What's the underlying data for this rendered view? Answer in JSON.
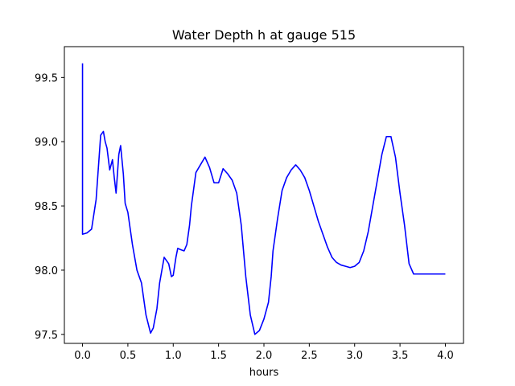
{
  "chart_data": {
    "type": "line",
    "title": "Water Depth h at gauge 515",
    "xlabel": "hours",
    "ylabel": "",
    "xlim": [
      -0.2,
      4.2
    ],
    "ylim": [
      97.43,
      99.74
    ],
    "x_ticks": [
      0.0,
      0.5,
      1.0,
      1.5,
      2.0,
      2.5,
      3.0,
      3.5,
      4.0
    ],
    "x_tick_labels": [
      "0.0",
      "0.5",
      "1.0",
      "1.5",
      "2.0",
      "2.5",
      "3.0",
      "3.5",
      "4.0"
    ],
    "y_ticks": [
      97.5,
      98.0,
      98.5,
      99.0,
      99.5
    ],
    "y_tick_labels": [
      "97.5",
      "98.0",
      "98.5",
      "99.0",
      "99.5"
    ],
    "grid": false,
    "legend": "none",
    "series": [
      {
        "color": "#0000ff",
        "x": [
          0.0,
          0.0,
          0.0,
          0.05,
          0.1,
          0.15,
          0.18,
          0.2,
          0.23,
          0.25,
          0.27,
          0.3,
          0.33,
          0.35,
          0.37,
          0.4,
          0.42,
          0.45,
          0.47,
          0.5,
          0.55,
          0.6,
          0.65,
          0.7,
          0.75,
          0.78,
          0.82,
          0.85,
          0.9,
          0.95,
          0.98,
          1.0,
          1.03,
          1.05,
          1.08,
          1.12,
          1.15,
          1.18,
          1.2,
          1.25,
          1.3,
          1.35,
          1.4,
          1.45,
          1.5,
          1.55,
          1.6,
          1.65,
          1.7,
          1.75,
          1.8,
          1.85,
          1.9,
          1.95,
          2.0,
          2.05,
          2.08,
          2.1,
          2.15,
          2.2,
          2.25,
          2.3,
          2.35,
          2.4,
          2.45,
          2.5,
          2.55,
          2.6,
          2.65,
          2.7,
          2.75,
          2.8,
          2.85,
          2.9,
          2.95,
          3.0,
          3.05,
          3.1,
          3.15,
          3.2,
          3.25,
          3.3,
          3.35,
          3.4,
          3.45,
          3.5,
          3.55,
          3.6,
          3.65,
          3.7,
          3.75,
          3.8,
          3.85,
          3.9,
          3.95,
          4.0
        ],
        "y": [
          99.61,
          98.28,
          98.28,
          98.29,
          98.32,
          98.55,
          98.85,
          99.05,
          99.08,
          99.0,
          98.95,
          98.78,
          98.86,
          98.72,
          98.6,
          98.9,
          98.97,
          98.75,
          98.52,
          98.45,
          98.2,
          98.0,
          97.9,
          97.65,
          97.51,
          97.55,
          97.7,
          97.9,
          98.1,
          98.05,
          97.95,
          97.96,
          98.1,
          98.17,
          98.16,
          98.15,
          98.2,
          98.35,
          98.5,
          98.76,
          98.82,
          98.88,
          98.8,
          98.68,
          98.68,
          98.79,
          98.75,
          98.7,
          98.6,
          98.35,
          97.95,
          97.65,
          97.5,
          97.53,
          97.62,
          97.75,
          97.95,
          98.15,
          98.4,
          98.62,
          98.72,
          98.78,
          98.82,
          98.78,
          98.72,
          98.62,
          98.5,
          98.38,
          98.28,
          98.18,
          98.1,
          98.06,
          98.04,
          98.03,
          98.02,
          98.03,
          98.06,
          98.15,
          98.3,
          98.5,
          98.7,
          98.9,
          99.04,
          99.04,
          98.88,
          98.6,
          98.35,
          98.05,
          97.97,
          97.97,
          97.97,
          97.97,
          97.97,
          97.97,
          97.97,
          97.97
        ]
      }
    ]
  }
}
